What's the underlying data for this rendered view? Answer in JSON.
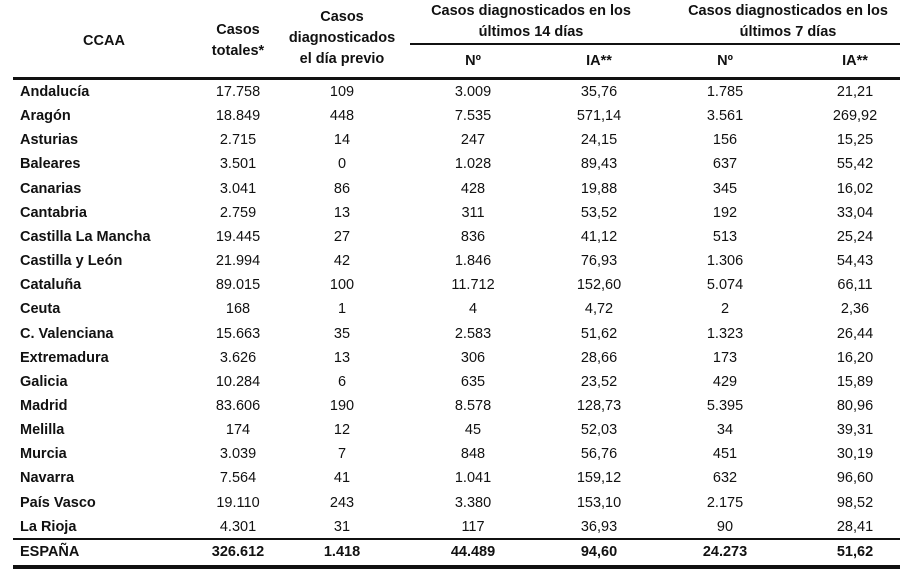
{
  "header": {
    "ccaa": "CCAA",
    "casos_totales": [
      "Casos",
      "totales*"
    ],
    "dia_previo": [
      "Casos",
      "diagnosticados",
      "el día previo"
    ],
    "group_14": [
      "Casos diagnosticados en los",
      "últimos 14 días"
    ],
    "group_7": [
      "Casos diagnosticados en los",
      "últimos 7 días"
    ],
    "n_14": "Nº",
    "ia_14": "IA**",
    "n_7": "Nº",
    "ia_7": "IA**"
  },
  "rows": [
    [
      "Andalucía",
      "17.758",
      "109",
      "3.009",
      "35,76",
      "1.785",
      "21,21"
    ],
    [
      "Aragón",
      "18.849",
      "448",
      "7.535",
      "571,14",
      "3.561",
      "269,92"
    ],
    [
      "Asturias",
      "2.715",
      "14",
      "247",
      "24,15",
      "156",
      "15,25"
    ],
    [
      "Baleares",
      "3.501",
      "0",
      "1.028",
      "89,43",
      "637",
      "55,42"
    ],
    [
      "Canarias",
      "3.041",
      "86",
      "428",
      "19,88",
      "345",
      "16,02"
    ],
    [
      "Cantabria",
      "2.759",
      "13",
      "311",
      "53,52",
      "192",
      "33,04"
    ],
    [
      "Castilla La Mancha",
      "19.445",
      "27",
      "836",
      "41,12",
      "513",
      "25,24"
    ],
    [
      "Castilla y León",
      "21.994",
      "42",
      "1.846",
      "76,93",
      "1.306",
      "54,43"
    ],
    [
      "Cataluña",
      "89.015",
      "100",
      "11.712",
      "152,60",
      "5.074",
      "66,11"
    ],
    [
      "Ceuta",
      "168",
      "1",
      "4",
      "4,72",
      "2",
      "2,36"
    ],
    [
      "C. Valenciana",
      "15.663",
      "35",
      "2.583",
      "51,62",
      "1.323",
      "26,44"
    ],
    [
      "Extremadura",
      "3.626",
      "13",
      "306",
      "28,66",
      "173",
      "16,20"
    ],
    [
      "Galicia",
      "10.284",
      "6",
      "635",
      "23,52",
      "429",
      "15,89"
    ],
    [
      "Madrid",
      "83.606",
      "190",
      "8.578",
      "128,73",
      "5.395",
      "80,96"
    ],
    [
      "Melilla",
      "174",
      "12",
      "45",
      "52,03",
      "34",
      "39,31"
    ],
    [
      "Murcia",
      "3.039",
      "7",
      "848",
      "56,76",
      "451",
      "30,19"
    ],
    [
      "Navarra",
      "7.564",
      "41",
      "1.041",
      "159,12",
      "632",
      "96,60"
    ],
    [
      "País Vasco",
      "19.110",
      "243",
      "3.380",
      "153,10",
      "2.175",
      "98,52"
    ],
    [
      "La Rioja",
      "4.301",
      "31",
      "117",
      "36,93",
      "90",
      "28,41"
    ]
  ],
  "total": [
    "ESPAÑA",
    "326.612",
    "1.418",
    "44.489",
    "94,60",
    "24.273",
    "51,62"
  ]
}
